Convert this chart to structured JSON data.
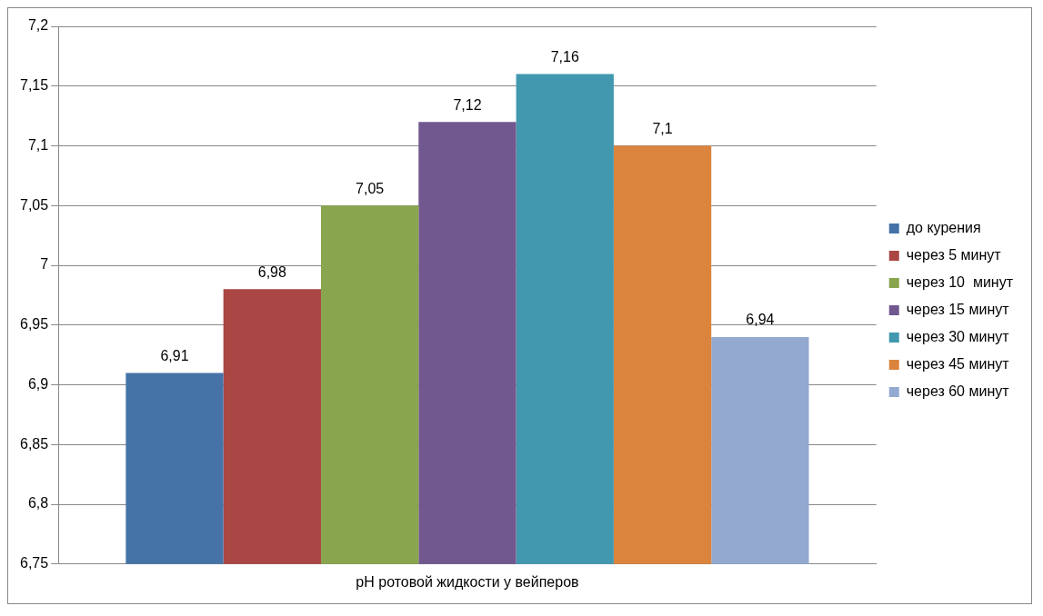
{
  "chart_data": {
    "type": "bar",
    "categories": [
      "pH ротовой жидкости у вейперов"
    ],
    "series": [
      {
        "name": "до курения",
        "color": "#4573a7",
        "values": [
          6.91
        ],
        "value_labels": [
          "6,91"
        ]
      },
      {
        "name": "через 5 минут",
        "color": "#aa4643",
        "values": [
          6.98
        ],
        "value_labels": [
          "6,98"
        ]
      },
      {
        "name": "через 10  минут",
        "color": "#89a54e",
        "values": [
          7.05
        ],
        "value_labels": [
          "7,05"
        ]
      },
      {
        "name": "через 15 минут",
        "color": "#71588f",
        "values": [
          7.12
        ],
        "value_labels": [
          "7,12"
        ]
      },
      {
        "name": "через 30 минут",
        "color": "#4198af",
        "values": [
          7.16
        ],
        "value_labels": [
          "7,16"
        ]
      },
      {
        "name": "через 45 минут",
        "color": "#db843d",
        "values": [
          7.1
        ],
        "value_labels": [
          "7,1"
        ]
      },
      {
        "name": "через 60 минут",
        "color": "#93a9cf",
        "values": [
          6.94
        ],
        "value_labels": [
          "6,94"
        ]
      }
    ],
    "ylim": [
      6.75,
      7.2
    ],
    "yticks": [
      {
        "value": 6.75,
        "label": "6,75"
      },
      {
        "value": 6.8,
        "label": "6,8"
      },
      {
        "value": 6.85,
        "label": "6,85"
      },
      {
        "value": 6.9,
        "label": "6,9"
      },
      {
        "value": 6.95,
        "label": "6,95"
      },
      7,
      {
        "value": 7.05,
        "label": "7,05"
      },
      {
        "value": 7.1,
        "label": "7,1"
      },
      {
        "value": 7.15,
        "label": "7,15"
      },
      {
        "value": 7.2,
        "label": "7,2"
      }
    ],
    "grid": "y",
    "legend": "right"
  }
}
